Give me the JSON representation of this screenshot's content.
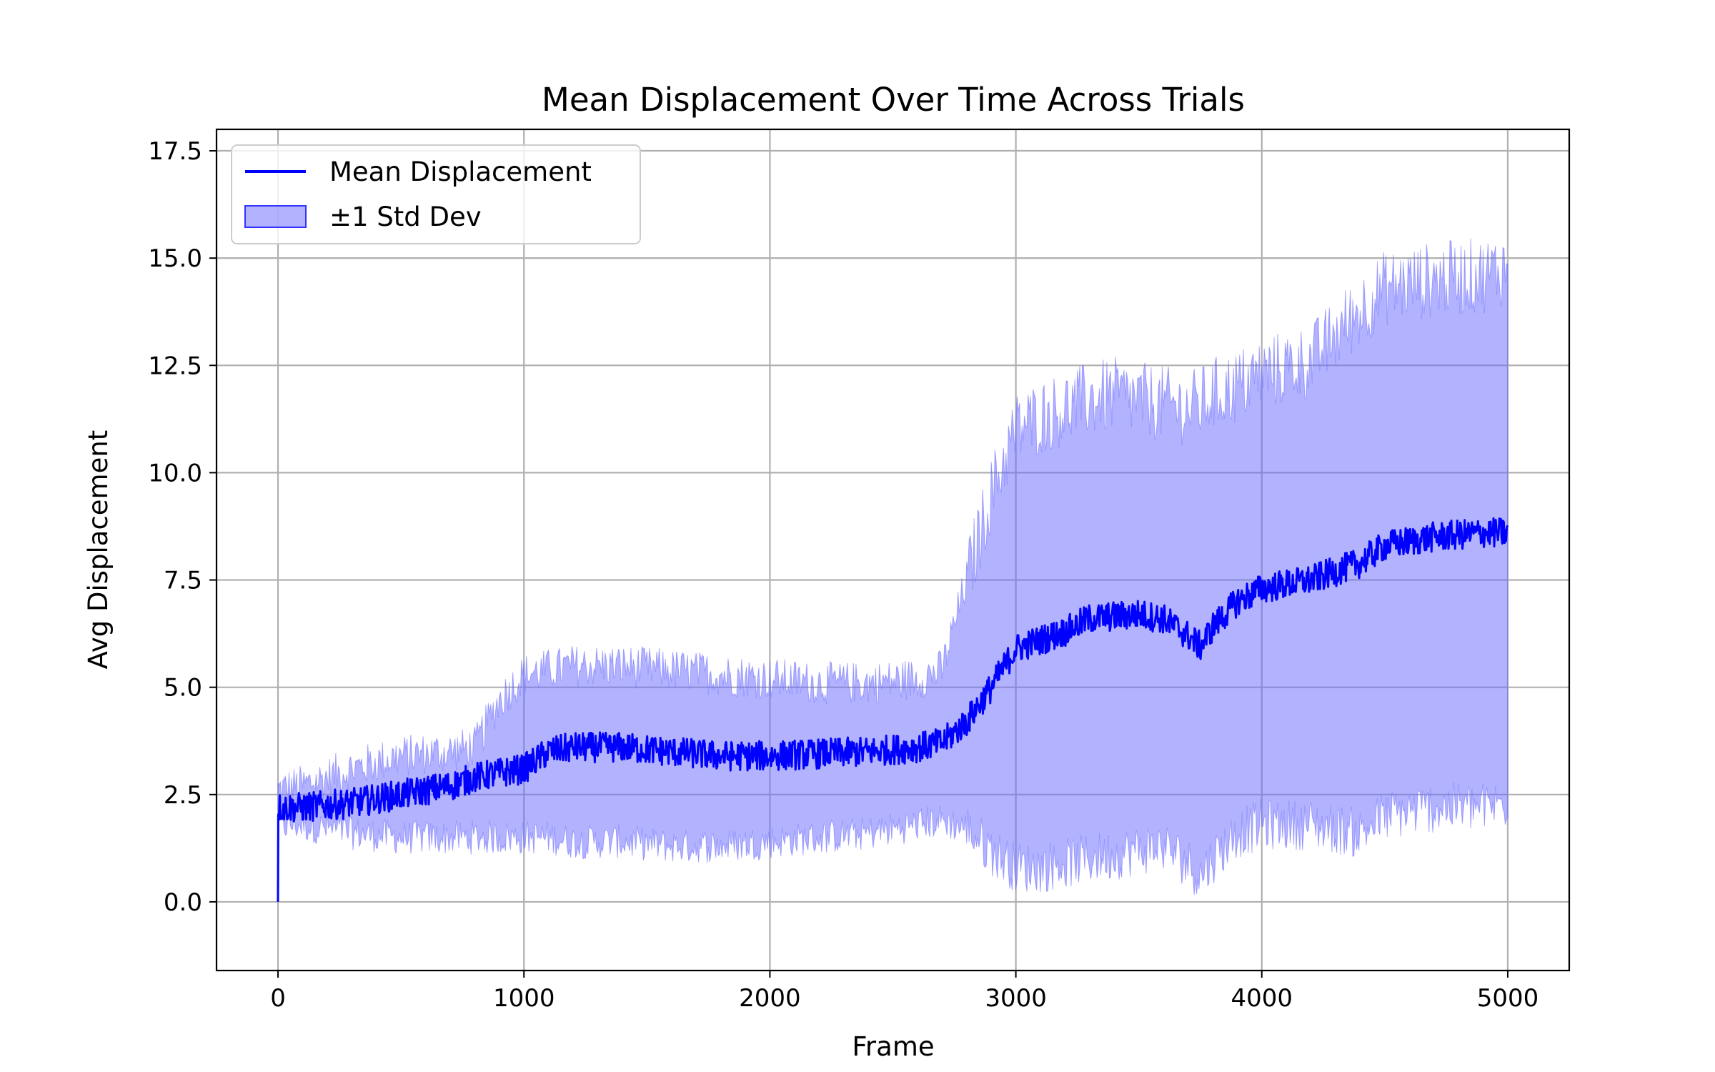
{
  "chart_data": {
    "type": "line",
    "title": "Mean Displacement Over Time Across Trials",
    "xlabel": "Frame",
    "ylabel": "Avg Displacement",
    "xlim": [
      -250,
      5250
    ],
    "ylim": [
      -1.6,
      18.0
    ],
    "xticks": [
      0,
      1000,
      2000,
      3000,
      4000,
      5000
    ],
    "yticks": [
      0.0,
      2.5,
      5.0,
      7.5,
      10.0,
      12.5,
      15.0,
      17.5
    ],
    "xtick_labels": [
      "0",
      "1000",
      "2000",
      "3000",
      "4000",
      "5000"
    ],
    "ytick_labels": [
      "0.0",
      "2.5",
      "5.0",
      "7.5",
      "10.0",
      "12.5",
      "15.0",
      "17.5"
    ],
    "grid": true,
    "legend_position": "top-left",
    "colors": {
      "mean": "#0000ff",
      "band": "#6666ff",
      "band_alpha": 0.5,
      "grid": "#b0b0b0"
    },
    "series": [
      {
        "name": "Mean Displacement",
        "kind": "line",
        "x": [
          0,
          1,
          100,
          300,
          500,
          700,
          800,
          900,
          1000,
          1100,
          1200,
          1400,
          1600,
          1800,
          2000,
          2200,
          2400,
          2600,
          2700,
          2800,
          2900,
          3000,
          3100,
          3200,
          3300,
          3400,
          3500,
          3600,
          3700,
          3750,
          3800,
          3900,
          4000,
          4200,
          4400,
          4500,
          4700,
          4900,
          5000
        ],
        "y": [
          0.0,
          2.2,
          2.2,
          2.3,
          2.5,
          2.7,
          2.9,
          3.0,
          3.1,
          3.5,
          3.6,
          3.6,
          3.5,
          3.4,
          3.4,
          3.45,
          3.5,
          3.6,
          3.7,
          4.2,
          5.0,
          5.9,
          6.1,
          6.3,
          6.6,
          6.65,
          6.7,
          6.6,
          6.2,
          5.95,
          6.4,
          7.0,
          7.3,
          7.5,
          7.9,
          8.3,
          8.5,
          8.6,
          8.6
        ],
        "noise": 0.35
      },
      {
        "name": "±1 Std Dev",
        "kind": "band",
        "x": [
          0,
          100,
          300,
          500,
          700,
          800,
          900,
          1000,
          1100,
          1200,
          1400,
          1600,
          1800,
          2000,
          2200,
          2400,
          2600,
          2700,
          2800,
          2900,
          3000,
          3100,
          3200,
          3300,
          3400,
          3500,
          3600,
          3700,
          3750,
          3800,
          3900,
          4000,
          4200,
          4400,
          4500,
          4700,
          4900,
          5000
        ],
        "upper": [
          2.6,
          2.7,
          3.1,
          3.4,
          3.5,
          3.6,
          4.7,
          5.3,
          5.4,
          5.5,
          5.5,
          5.4,
          5.3,
          5.2,
          5.1,
          5.1,
          5.2,
          5.4,
          7.5,
          9.5,
          11.0,
          11.3,
          11.5,
          11.7,
          11.8,
          11.7,
          11.6,
          11.5,
          11.6,
          11.8,
          12.0,
          12.3,
          12.6,
          13.8,
          14.3,
          14.5,
          14.6,
          14.8
        ],
        "lower": [
          1.8,
          1.8,
          1.6,
          1.5,
          1.5,
          1.5,
          1.5,
          1.5,
          1.5,
          1.4,
          1.4,
          1.3,
          1.3,
          1.4,
          1.5,
          1.6,
          1.8,
          1.9,
          1.7,
          1.2,
          0.8,
          0.8,
          0.9,
          1.0,
          1.1,
          1.2,
          1.3,
          0.9,
          0.6,
          1.0,
          1.6,
          1.8,
          1.8,
          1.6,
          2.0,
          2.2,
          2.2,
          2.3
        ],
        "noise": 0.5
      }
    ],
    "legend": [
      {
        "label": "Mean Displacement",
        "symbol": "line"
      },
      {
        "label": "±1 Std Dev",
        "symbol": "patch"
      }
    ]
  }
}
